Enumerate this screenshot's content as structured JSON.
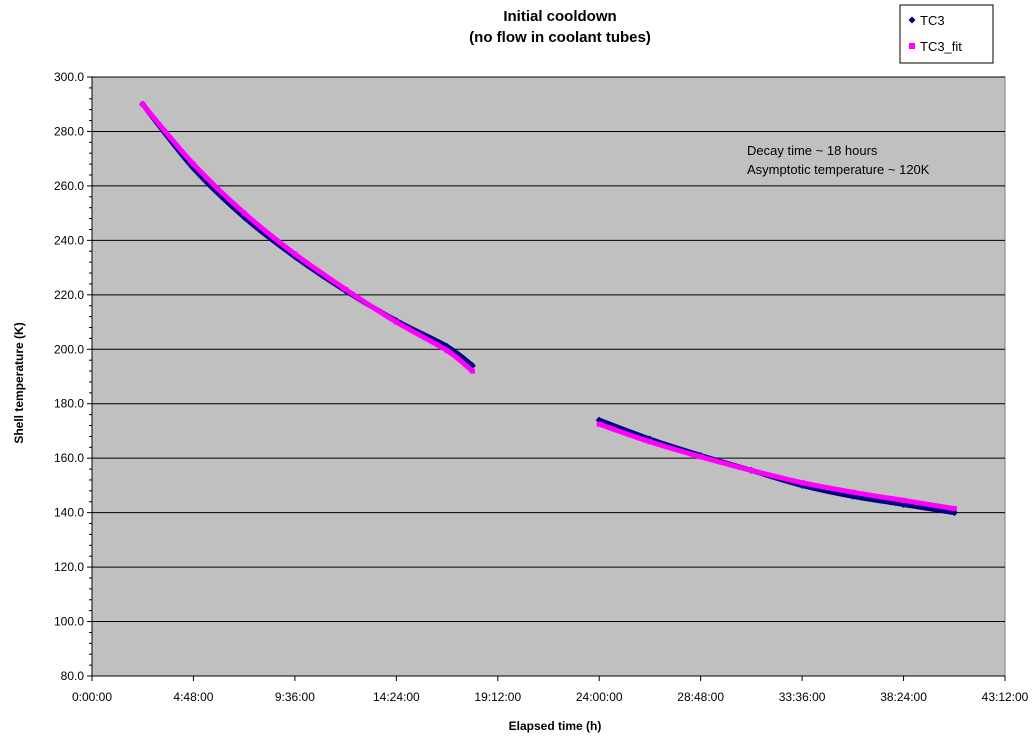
{
  "chart_data": {
    "type": "line",
    "title": "Initial cooldown",
    "subtitle": "(no flow in coolant tubes)",
    "xlabel": "Elapsed time (h)",
    "ylabel": "Shell temperature (K)",
    "xlim": [
      "0:00:00",
      "43:12:00"
    ],
    "x_tick_labels": [
      "0:00:00",
      "4:48:00",
      "9:36:00",
      "14:24:00",
      "19:12:00",
      "24:00:00",
      "28:48:00",
      "33:36:00",
      "38:24:00",
      "43:12:00"
    ],
    "ylim": [
      80,
      300
    ],
    "y_tick_labels": [
      "80.0",
      "100.0",
      "120.0",
      "140.0",
      "160.0",
      "180.0",
      "200.0",
      "220.0",
      "240.0",
      "260.0",
      "280.0",
      "300.0"
    ],
    "grid": true,
    "plot_background": "#c0c0c0",
    "legend_position": "top-right",
    "annotations": [
      "Decay time ~ 18 hours",
      "Asymptotic temperature ~ 120K"
    ],
    "series": [
      {
        "name": "TC3",
        "color": "#000080",
        "marker": "diamond",
        "segments": [
          {
            "x": [
              "2:24:00",
              "4:48:00",
              "7:12:00",
              "9:36:00",
              "12:00:00",
              "14:24:00",
              "16:48:00",
              "18:00:00"
            ],
            "y": [
              290.0,
              266.5,
              248.5,
              234.0,
              221.5,
              210.5,
              201.0,
              194.0
            ]
          },
          {
            "x": [
              "24:00:00",
              "26:24:00",
              "28:48:00",
              "31:12:00",
              "33:36:00",
              "36:00:00",
              "38:24:00",
              "40:48:00"
            ],
            "y": [
              174.0,
              167.0,
              161.0,
              155.5,
              150.0,
              146.0,
              143.0,
              140.0
            ]
          }
        ]
      },
      {
        "name": "TC3_fit",
        "color": "#ff00ff",
        "marker": "square",
        "segments": [
          {
            "x": [
              "2:24:00",
              "4:48:00",
              "7:12:00",
              "9:36:00",
              "12:00:00",
              "14:24:00",
              "16:48:00",
              "18:00:00"
            ],
            "y": [
              290.0,
              268.0,
              250.0,
              235.0,
              222.0,
              210.0,
              199.5,
              192.0
            ]
          },
          {
            "x": [
              "24:00:00",
              "26:24:00",
              "28:48:00",
              "31:12:00",
              "33:36:00",
              "36:00:00",
              "38:24:00",
              "40:48:00"
            ],
            "y": [
              172.5,
              166.0,
              160.5,
              155.5,
              151.0,
              147.5,
              144.5,
              141.5
            ]
          }
        ]
      }
    ]
  }
}
